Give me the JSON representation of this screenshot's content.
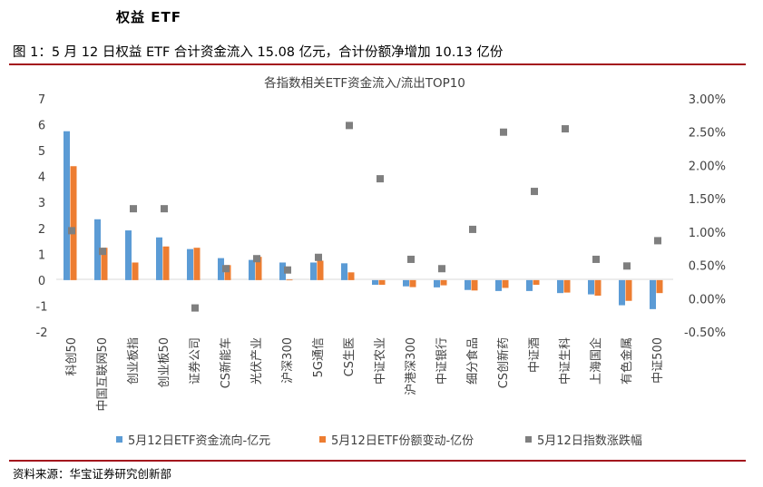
{
  "page": {
    "section_title": "权益 ETF",
    "figure_title": "图 1：5 月 12 日权益 ETF 合计资金流入 15.08 亿元，合计份额净增加 10.13 亿份",
    "source": "资料来源：华宝证券研究创新部"
  },
  "chart_data": {
    "type": "bar",
    "title": "各指数相关ETF资金流入/流出TOP10",
    "categories": [
      "科创50",
      "中国互联网50",
      "创业板指",
      "创业板50",
      "证券公司",
      "CS新能车",
      "光伏产业",
      "沪深300",
      "5G通信",
      "CS生医",
      "中证农业",
      "沪港深300",
      "中证银行",
      "细分食品",
      "CS创新药",
      "中证酒",
      "中证生科",
      "上海国企",
      "有色金属",
      "中证500"
    ],
    "series": [
      {
        "name": "5月12日ETF资金流向-亿元",
        "type": "bar",
        "axis": "left",
        "color": "#5b9bd5",
        "values": [
          5.75,
          2.35,
          1.92,
          1.65,
          1.2,
          0.85,
          0.78,
          0.68,
          0.68,
          0.65,
          -0.18,
          -0.24,
          -0.28,
          -0.38,
          -0.42,
          -0.42,
          -0.5,
          -0.55,
          -0.97,
          -1.12
        ]
      },
      {
        "name": "5月12日ETF份额变动-亿份",
        "type": "bar",
        "axis": "left",
        "color": "#ed7d31",
        "values": [
          4.4,
          1.25,
          0.68,
          1.3,
          1.25,
          0.58,
          0.9,
          0.02,
          0.75,
          0.3,
          -0.18,
          -0.27,
          -0.2,
          -0.4,
          -0.3,
          -0.18,
          -0.48,
          -0.6,
          -0.8,
          -0.5
        ]
      },
      {
        "name": "5月12日指数涨跌幅",
        "type": "scatter",
        "axis": "right",
        "color": "#7f7f7f",
        "values": [
          1.02,
          0.71,
          1.35,
          1.35,
          -0.14,
          0.45,
          0.6,
          0.43,
          0.62,
          2.6,
          1.8,
          0.59,
          0.45,
          1.04,
          2.5,
          1.61,
          2.55,
          0.59,
          0.49,
          0.87
        ]
      }
    ],
    "y_left": {
      "min": -2,
      "max": 7,
      "ticks": [
        "-2",
        "-1",
        "0",
        "1",
        "2",
        "3",
        "4",
        "5",
        "6",
        "7"
      ]
    },
    "y_right": {
      "min": -0.5,
      "max": 3.0,
      "ticks": [
        "-0.50%",
        "0.00%",
        "0.50%",
        "1.00%",
        "1.50%",
        "2.00%",
        "2.50%",
        "3.00%"
      ]
    },
    "legend_position": "bottom",
    "grid": false
  }
}
